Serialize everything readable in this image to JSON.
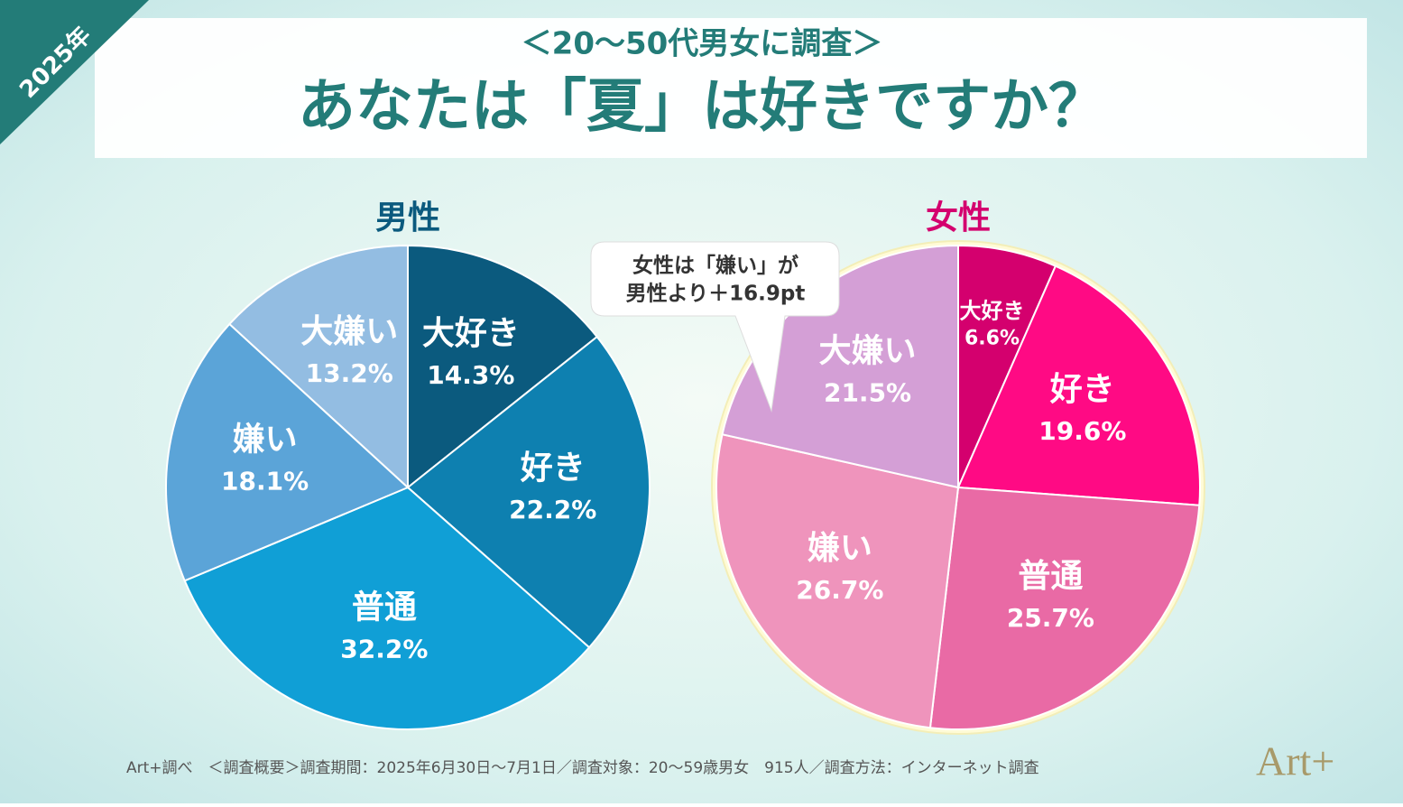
{
  "header": {
    "badge": "2025年",
    "kicker": "＜20～50代男女に調査＞",
    "title": "あなたは「夏」は好きですか？"
  },
  "chart_data": [
    {
      "type": "pie",
      "title": "男性",
      "title_color": "#0b5a7e",
      "categories": [
        "大好き",
        "好き",
        "普通",
        "嫌い",
        "大嫌い"
      ],
      "values": [
        14.3,
        22.2,
        32.2,
        18.1,
        13.2
      ],
      "value_labels": [
        "14.3%",
        "22.2%",
        "32.2%",
        "18.1%",
        "13.2%"
      ],
      "colors": [
        "#0b5a7e",
        "#0e80b0",
        "#109fd6",
        "#5ba4d8",
        "#93bde2"
      ]
    },
    {
      "type": "pie",
      "title": "女性",
      "title_color": "#d4006e",
      "categories": [
        "大好き",
        "好き",
        "普通",
        "嫌い",
        "大嫌い"
      ],
      "values": [
        6.6,
        19.6,
        25.7,
        26.7,
        21.5
      ],
      "value_labels": [
        "6.6%",
        "19.6%",
        "25.7%",
        "26.7%",
        "21.5%"
      ],
      "colors": [
        "#d4006e",
        "#ff0a84",
        "#e96aa5",
        "#ef94bc",
        "#d49fd6"
      ],
      "annotations": [
        "女性は「嫌い」が",
        "男性より＋16.9pt"
      ]
    }
  ],
  "footer": "Art+調べ　＜調査概要＞調査期間：2025年6月30日～7月1日／調査対象：20～59歳男女　915人／調査方法：インターネット調査",
  "logo": "Art+"
}
